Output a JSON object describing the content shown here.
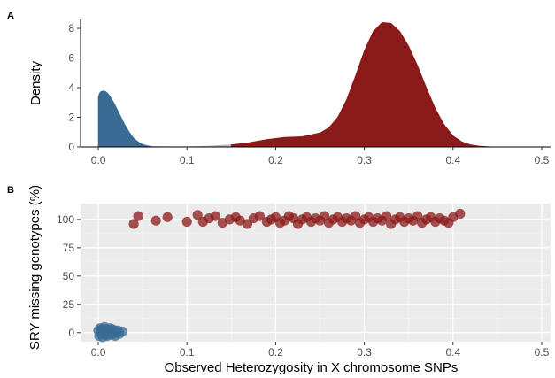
{
  "figure": {
    "panel_a_tag": "A",
    "panel_b_tag": "B"
  },
  "chart_data": [
    {
      "type": "area",
      "panel": "A",
      "ylabel": "Density",
      "xlabel": "",
      "xlim": [
        -0.02,
        0.51
      ],
      "ylim": [
        0,
        8.6
      ],
      "x_ticks": [
        "0.0",
        "0.1",
        "0.2",
        "0.3",
        "0.4",
        "0.5"
      ],
      "y_ticks": [
        "0",
        "2",
        "4",
        "6",
        "8"
      ],
      "grid": false,
      "legend": "none",
      "series": [
        {
          "color": "#3a6b94",
          "x": [
            0.0,
            0.002,
            0.005,
            0.008,
            0.011,
            0.014,
            0.017,
            0.02,
            0.025,
            0.03,
            0.035,
            0.04,
            0.045,
            0.05,
            0.055,
            0.06
          ],
          "y": [
            3.4,
            3.7,
            3.78,
            3.75,
            3.6,
            3.35,
            3.05,
            2.7,
            2.1,
            1.5,
            1.0,
            0.6,
            0.35,
            0.18,
            0.09,
            0.05
          ]
        },
        {
          "color": "#bdbdbd",
          "x": [
            0.06,
            0.07,
            0.08,
            0.09,
            0.1,
            0.11,
            0.12,
            0.13,
            0.14,
            0.15
          ],
          "y": [
            0.05,
            0.03,
            0.02,
            0.02,
            0.02,
            0.03,
            0.05,
            0.08,
            0.12,
            0.15
          ]
        },
        {
          "color": "#8b1a1a",
          "x": [
            0.15,
            0.17,
            0.19,
            0.21,
            0.23,
            0.25,
            0.26,
            0.27,
            0.28,
            0.29,
            0.3,
            0.31,
            0.32,
            0.33,
            0.34,
            0.35,
            0.36,
            0.37,
            0.38,
            0.39,
            0.4,
            0.41,
            0.42,
            0.43,
            0.44,
            0.445
          ],
          "y": [
            0.15,
            0.3,
            0.5,
            0.65,
            0.7,
            0.95,
            1.3,
            2.0,
            3.2,
            4.8,
            6.5,
            7.8,
            8.4,
            8.35,
            7.8,
            6.8,
            5.5,
            4.0,
            2.6,
            1.5,
            0.75,
            0.35,
            0.15,
            0.06,
            0.02,
            0.0
          ]
        }
      ]
    },
    {
      "type": "scatter",
      "panel": "B",
      "ylabel": "SRY missing genotypes (%)",
      "xlabel": "Observed Heterozygosity in X chromosome SNPs",
      "xlim": [
        -0.02,
        0.51
      ],
      "ylim": [
        -8,
        114
      ],
      "x_ticks": [
        "0.0",
        "0.1",
        "0.2",
        "0.3",
        "0.4",
        "0.5"
      ],
      "y_ticks": [
        "0",
        "25",
        "50",
        "75",
        "100"
      ],
      "grid": true,
      "legend": "none",
      "series": [
        {
          "color": "#3a6b94",
          "x": [
            0.0,
            0.001,
            0.002,
            0.003,
            0.004,
            0.005,
            0.006,
            0.007,
            0.008,
            0.009,
            0.01,
            0.011,
            0.012,
            0.013,
            0.014,
            0.015,
            0.016,
            0.017,
            0.018,
            0.019,
            0.02,
            0.021,
            0.022,
            0.024,
            0.027
          ],
          "y": [
            2,
            -3,
            4,
            -1,
            3,
            -4,
            1,
            5,
            -2,
            3,
            -3,
            2,
            0,
            4,
            -2,
            1,
            3,
            -1,
            2,
            -3,
            1,
            0,
            2,
            -1,
            1
          ]
        },
        {
          "color": "#8b1a1a",
          "x": [
            0.04,
            0.045,
            0.065,
            0.078,
            0.1,
            0.112,
            0.118,
            0.125,
            0.132,
            0.14,
            0.148,
            0.155,
            0.16,
            0.168,
            0.175,
            0.182,
            0.19,
            0.195,
            0.2,
            0.205,
            0.21,
            0.215,
            0.22,
            0.225,
            0.23,
            0.235,
            0.24,
            0.245,
            0.25,
            0.255,
            0.26,
            0.265,
            0.27,
            0.275,
            0.28,
            0.285,
            0.29,
            0.295,
            0.3,
            0.305,
            0.31,
            0.315,
            0.32,
            0.325,
            0.33,
            0.335,
            0.34,
            0.345,
            0.35,
            0.355,
            0.36,
            0.365,
            0.37,
            0.375,
            0.38,
            0.385,
            0.39,
            0.395,
            0.4,
            0.408
          ],
          "y": [
            96,
            103,
            99,
            102,
            98,
            104,
            98,
            101,
            103,
            97,
            100,
            102,
            99,
            96,
            101,
            103,
            98,
            100,
            102,
            97,
            99,
            103,
            101,
            96,
            100,
            102,
            98,
            101,
            99,
            103,
            97,
            100,
            102,
            98,
            101,
            99,
            103,
            97,
            100,
            102,
            98,
            101,
            99,
            103,
            96,
            100,
            102,
            98,
            101,
            99,
            103,
            97,
            100,
            102,
            98,
            101,
            99,
            97,
            102,
            105
          ]
        }
      ]
    }
  ]
}
